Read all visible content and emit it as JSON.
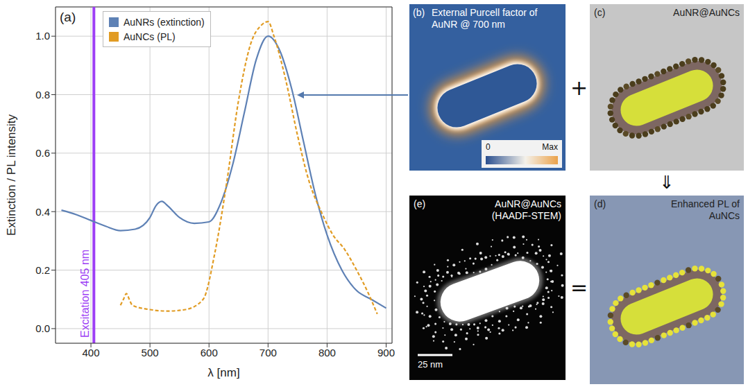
{
  "chart_data": {
    "type": "line",
    "panel_label": "(a)",
    "x_label": "λ [nm]",
    "y_label": "Extinction / PL intensity",
    "xlim": [
      340,
      910
    ],
    "xticks": [
      400,
      500,
      600,
      700,
      800,
      900
    ],
    "ylim": [
      -0.05,
      1.1
    ],
    "yticks": [
      {
        "value": 0,
        "label": "0.0"
      },
      {
        "value": 0.2,
        "label": "0.2"
      },
      {
        "value": 0.4,
        "label": "0.4"
      },
      {
        "value": 0.6,
        "label": "0.6"
      },
      {
        "value": 0.8,
        "label": "0.8"
      },
      {
        "value": 1,
        "label": "1.0"
      }
    ],
    "grid": true,
    "legend": "upper left",
    "series": [
      {
        "name": "AuNRs (extinction)",
        "color": "#5e81b5",
        "line_style": "solid",
        "x": [
          350,
          375,
          400,
          425,
          450,
          475,
          500,
          510,
          520,
          530,
          550,
          575,
          600,
          620,
          640,
          660,
          680,
          700,
          720,
          740,
          760,
          780,
          800,
          825,
          850,
          875,
          900
        ],
        "values": [
          0.405,
          0.39,
          0.37,
          0.35,
          0.335,
          0.34,
          0.38,
          0.42,
          0.435,
          0.42,
          0.38,
          0.36,
          0.365,
          0.43,
          0.56,
          0.74,
          0.92,
          1.0,
          0.95,
          0.82,
          0.64,
          0.46,
          0.32,
          0.2,
          0.13,
          0.1,
          0.07
        ]
      },
      {
        "name": "AuNCs (PL)",
        "color": "#e19c24",
        "line_style": "dashed",
        "x": [
          450,
          455,
          460,
          465,
          470,
          500,
          530,
          560,
          590,
          610,
          630,
          650,
          670,
          690,
          700,
          710,
          730,
          750,
          770,
          790,
          810,
          830,
          850,
          870,
          885
        ],
        "values": [
          0.08,
          0.1,
          0.12,
          0.1,
          0.08,
          0.065,
          0.06,
          0.065,
          0.1,
          0.26,
          0.5,
          0.78,
          0.97,
          1.04,
          1.05,
          1.0,
          0.85,
          0.66,
          0.5,
          0.4,
          0.32,
          0.27,
          0.2,
          0.12,
          0.05
        ]
      }
    ],
    "annotations": [
      {
        "type": "vline",
        "x": 405,
        "label": "Excitation 405 nm",
        "color": "#9e3ff5"
      }
    ]
  },
  "panels": [
    {
      "label": "(b)",
      "title": "External Purcell factor of AuNR @ 700 nm",
      "colorbar_labels": [
        "0",
        "Max"
      ]
    },
    {
      "label": "(c)",
      "title": "AuNR@AuNCs"
    },
    {
      "label": "(d)",
      "title": "Enhanced PL of AuNCs"
    },
    {
      "label": "(e)",
      "title": "AuNR@AuNCs (HAADF-STEM)",
      "scale_bar": "25 nm"
    }
  ],
  "operators": [
    "+",
    "⇓",
    "="
  ]
}
